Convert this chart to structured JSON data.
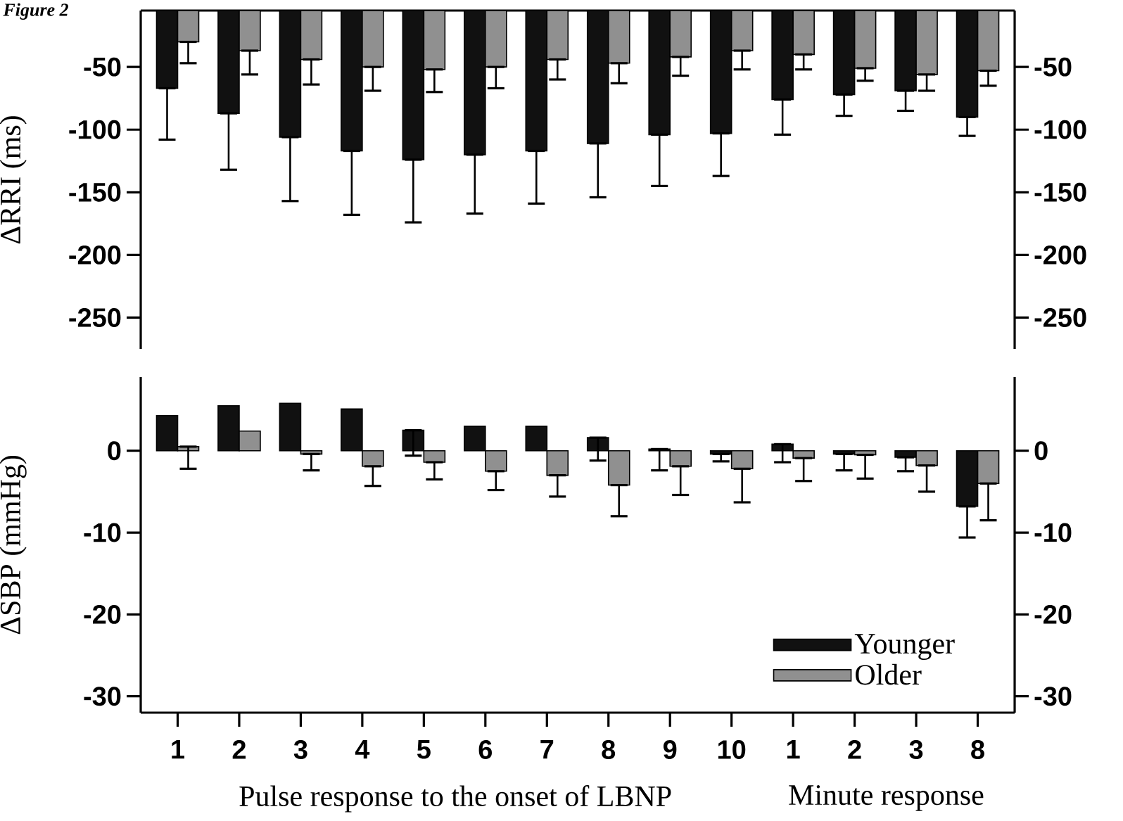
{
  "chart_data": [
    {
      "type": "bar",
      "title": "Figure 2",
      "ylabel": "ΔRRI (ms)",
      "tick_labels": "y",
      "categories": [
        "1",
        "2",
        "3",
        "4",
        "5",
        "6",
        "7",
        "8",
        "9",
        "10",
        "1",
        "2",
        "3",
        "8"
      ],
      "ylim": [
        -275,
        -5
      ],
      "yticks": [
        -50,
        -100,
        -150,
        -200,
        -250
      ],
      "y2lim": [
        -275,
        -5
      ],
      "y2ticks": [
        -50,
        -100,
        -150,
        -200,
        -250
      ],
      "series": [
        {
          "color": "#111111",
          "values": [
            -67,
            -87,
            -106,
            -117,
            -124,
            -120,
            -117,
            -111,
            -104,
            -103,
            -76,
            -72,
            -69,
            -90
          ],
          "errors": [
            [
              -108,
              -67
            ],
            [
              -132,
              -87
            ],
            [
              -157,
              -106
            ],
            [
              -168,
              -117
            ],
            [
              -174,
              -124
            ],
            [
              -167,
              -120
            ],
            [
              -159,
              -117
            ],
            [
              -154,
              -111
            ],
            [
              -145,
              -104
            ],
            [
              -137,
              -103
            ],
            [
              -104,
              -76
            ],
            [
              -89,
              -72
            ],
            [
              -85,
              -69
            ],
            [
              -105,
              -90
            ]
          ]
        },
        {
          "color": "#909090",
          "values": [
            -30,
            -37,
            -44,
            -50,
            -52,
            -50,
            -44,
            -47,
            -42,
            -37,
            -40,
            -51,
            -56,
            -53
          ],
          "errors": [
            [
              -47,
              -30
            ],
            [
              -56,
              -37
            ],
            [
              -64,
              -44
            ],
            [
              -69,
              -50
            ],
            [
              -70,
              -52
            ],
            [
              -67,
              -50
            ],
            [
              -60,
              -44
            ],
            [
              -63,
              -47
            ],
            [
              -57,
              -42
            ],
            [
              -52,
              -37
            ],
            [
              -52,
              -40
            ],
            [
              -61,
              -51
            ],
            [
              -69,
              -56
            ],
            [
              -65,
              -53
            ]
          ]
        }
      ]
    },
    {
      "type": "bar",
      "ylabel": "ΔSBP (mmHg)",
      "xlabel": "Pulse response to the onset of LBNP",
      "annotations": [
        "Minute response"
      ],
      "legend": "bottom right",
      "categories": [
        "1",
        "2",
        "3",
        "4",
        "5",
        "6",
        "7",
        "8",
        "9",
        "10",
        "1",
        "2",
        "3",
        "8"
      ],
      "ylim": [
        -32,
        9
      ],
      "yticks": [
        0,
        -10,
        -20,
        -30
      ],
      "y2lim": [
        -32,
        9
      ],
      "y2ticks": [
        0,
        -10,
        -20,
        -30
      ],
      "series": [
        {
          "name": "Younger",
          "color": "#111111",
          "values": [
            4.3,
            5.5,
            5.8,
            5.1,
            2.5,
            3.0,
            3.0,
            1.6,
            0.2,
            -0.4,
            0.8,
            -0.4,
            -0.8,
            -6.8
          ],
          "errors": [
            null,
            null,
            null,
            null,
            [
              -0.6,
              2.5
            ],
            null,
            null,
            [
              -1.2,
              1.6
            ],
            [
              -2.4,
              0.2
            ],
            [
              -1.3,
              -0.4
            ],
            [
              -1.4,
              0.8
            ],
            [
              -2.4,
              -0.4
            ],
            [
              -2.5,
              -0.8
            ],
            [
              -10.6,
              -6.8
            ]
          ]
        },
        {
          "name": "Older",
          "color": "#909090",
          "values": [
            0.5,
            2.4,
            -0.4,
            -1.9,
            -1.4,
            -2.5,
            -3.0,
            -4.2,
            -1.9,
            -2.2,
            -0.9,
            -0.5,
            -1.8,
            -4.0
          ],
          "errors": [
            [
              -2.2,
              0.5
            ],
            null,
            [
              -2.4,
              -0.4
            ],
            [
              -4.3,
              -1.9
            ],
            [
              -3.5,
              -1.4
            ],
            [
              -4.8,
              -2.5
            ],
            [
              -5.6,
              -3.0
            ],
            [
              -8.0,
              -4.2
            ],
            [
              -5.4,
              -1.9
            ],
            [
              -6.3,
              -2.2
            ],
            [
              -3.7,
              -0.9
            ],
            [
              -3.4,
              -0.5
            ],
            [
              -5.0,
              -1.8
            ],
            [
              -8.5,
              -4.0
            ]
          ]
        }
      ]
    }
  ]
}
